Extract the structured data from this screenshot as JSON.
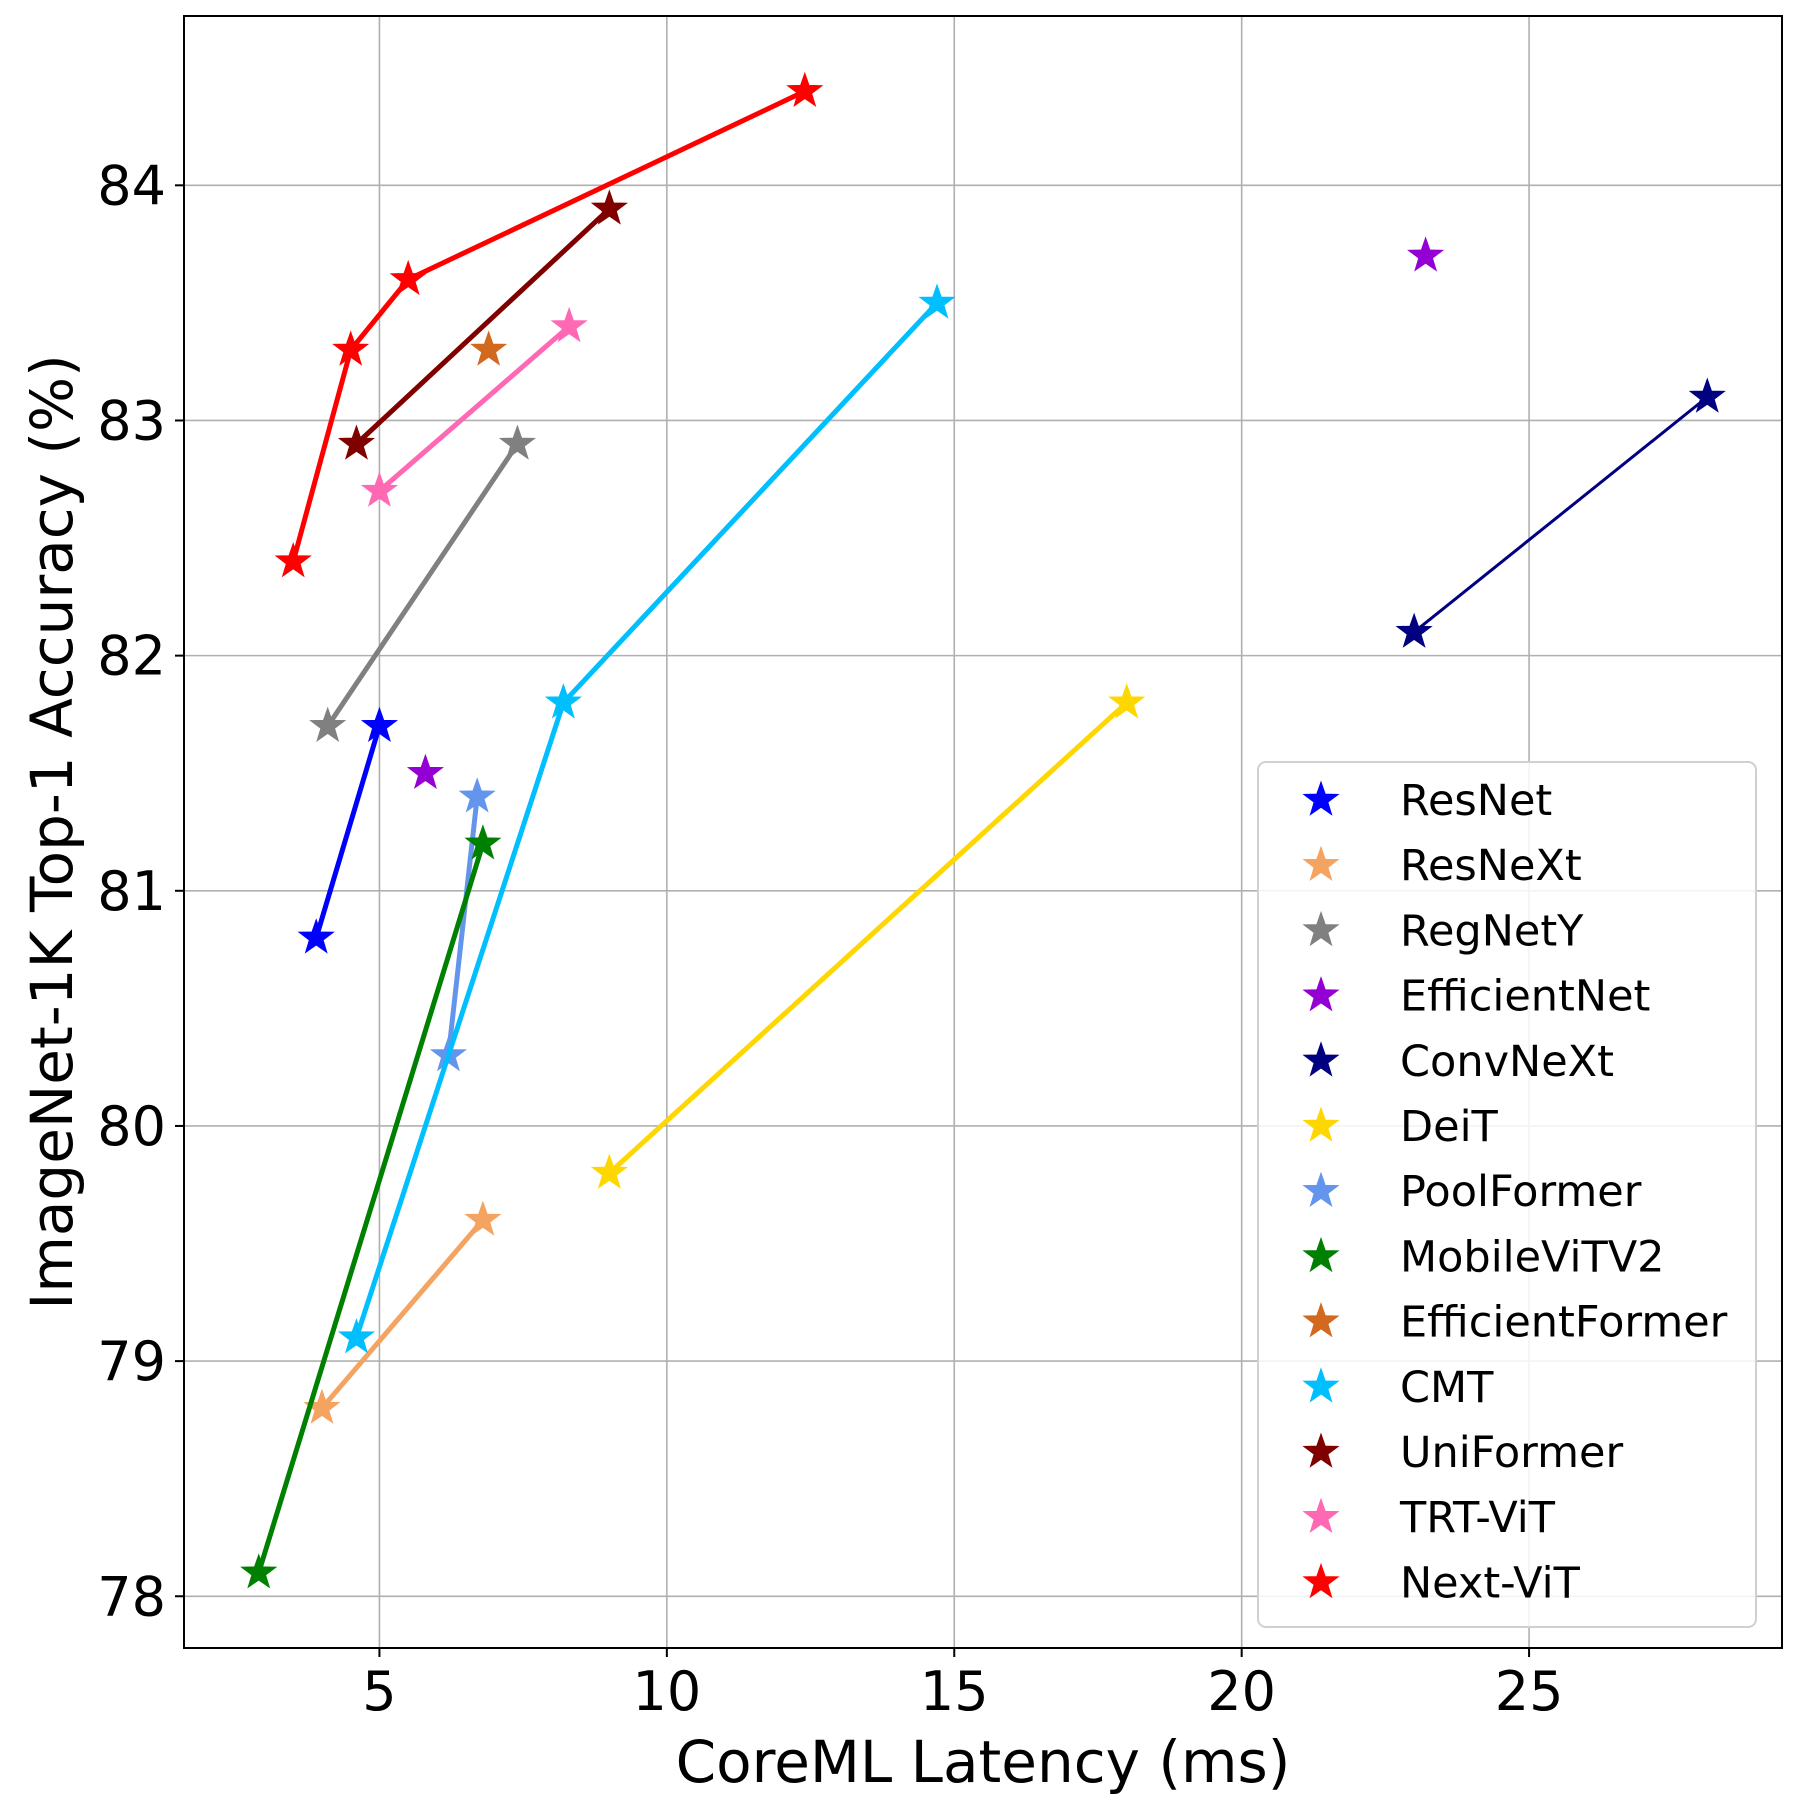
{
  "chart_data": {
    "type": "line",
    "title": "",
    "xlabel": "CoreML Latency (ms)",
    "ylabel": "ImageNet-1K Top-1 Accuracy (%)",
    "xlim": [
      1.6,
      29.4
    ],
    "ylim": [
      77.78,
      84.72
    ],
    "xticks": [
      5,
      10,
      15,
      20,
      25
    ],
    "yticks": [
      78,
      79,
      80,
      81,
      82,
      83,
      84
    ],
    "grid": true,
    "legend_position": "lower-right",
    "series": [
      {
        "name": "ResNet",
        "color": "#0000ff",
        "line_width": 5,
        "points": [
          [
            3.9,
            80.8
          ],
          [
            5.0,
            81.7
          ]
        ]
      },
      {
        "name": "ResNeXt",
        "color": "#f4a460",
        "line_width": 5,
        "points": [
          [
            4.0,
            78.8
          ],
          [
            6.8,
            79.6
          ]
        ]
      },
      {
        "name": "RegNetY",
        "color": "#808080",
        "line_width": 5,
        "points": [
          [
            4.1,
            81.7
          ],
          [
            7.4,
            82.9
          ]
        ]
      },
      {
        "name": "EfficientNet",
        "color": "#9400d3",
        "line_width": 0,
        "points": [
          [
            5.8,
            81.5
          ],
          [
            23.2,
            83.7
          ]
        ]
      },
      {
        "name": "ConvNeXt",
        "color": "#000080",
        "line_width": 3,
        "points": [
          [
            23.0,
            82.1
          ],
          [
            28.1,
            83.1
          ]
        ]
      },
      {
        "name": "DeiT",
        "color": "#ffd700",
        "line_width": 5,
        "points": [
          [
            9.0,
            79.8
          ],
          [
            18.0,
            81.8
          ]
        ]
      },
      {
        "name": "PoolFormer",
        "color": "#6495ed",
        "line_width": 5,
        "points": [
          [
            6.2,
            80.3
          ],
          [
            6.7,
            81.4
          ]
        ]
      },
      {
        "name": "MobileViTV2",
        "color": "#008000",
        "line_width": 5,
        "points": [
          [
            2.9,
            78.1
          ],
          [
            6.8,
            81.2
          ]
        ]
      },
      {
        "name": "EfficientFormer",
        "color": "#d2691e",
        "line_width": 0,
        "points": [
          [
            6.9,
            83.3
          ]
        ]
      },
      {
        "name": "CMT",
        "color": "#00bfff",
        "line_width": 5,
        "points": [
          [
            4.6,
            79.1
          ],
          [
            8.2,
            81.8
          ],
          [
            14.7,
            83.5
          ]
        ]
      },
      {
        "name": "UniFormer",
        "color": "#800000",
        "line_width": 5,
        "points": [
          [
            4.6,
            82.9
          ],
          [
            9.0,
            83.9
          ]
        ]
      },
      {
        "name": "TRT-ViT",
        "color": "#ff69b4",
        "line_width": 5,
        "points": [
          [
            5.0,
            82.7
          ],
          [
            8.3,
            83.4
          ]
        ]
      },
      {
        "name": "Next-ViT",
        "color": "#ff0000",
        "line_width": 5,
        "points": [
          [
            3.5,
            82.4
          ],
          [
            4.5,
            83.3
          ],
          [
            5.5,
            83.6
          ],
          [
            12.4,
            84.4
          ]
        ]
      }
    ]
  }
}
